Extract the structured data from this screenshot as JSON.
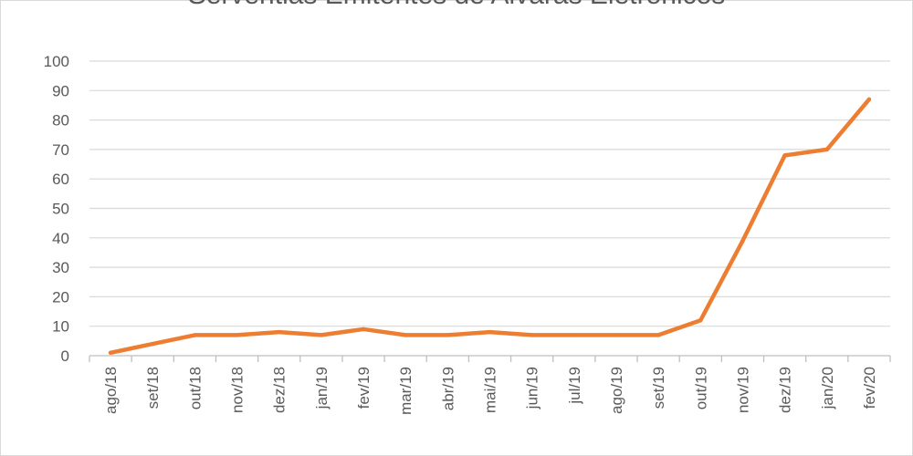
{
  "chart_data": {
    "type": "line",
    "title": "Serventias Emitentes de Alvarás Eletrônicos",
    "xlabel": "",
    "ylabel": "",
    "ylim": [
      0,
      100
    ],
    "yticks": [
      0,
      10,
      20,
      30,
      40,
      50,
      60,
      70,
      80,
      90,
      100
    ],
    "grid": true,
    "legend": "none",
    "categories": [
      "ago/18",
      "set/18",
      "out/18",
      "nov/18",
      "dez/18",
      "jan/19",
      "fev/19",
      "mar/19",
      "abr/19",
      "mai/19",
      "jun/19",
      "jul/19",
      "ago/19",
      "set/19",
      "out/19",
      "nov/19",
      "dez/19",
      "jan/20",
      "fev/20"
    ],
    "series": [
      {
        "values": [
          1,
          4,
          7,
          7,
          8,
          7,
          9,
          7,
          7,
          8,
          7,
          7,
          7,
          7,
          12,
          39,
          68,
          70,
          87
        ],
        "color": "#ed7d31"
      }
    ],
    "colors": {
      "grid": "#d9d9d9",
      "axis": "#bfbfbf",
      "text": "#595959"
    }
  }
}
